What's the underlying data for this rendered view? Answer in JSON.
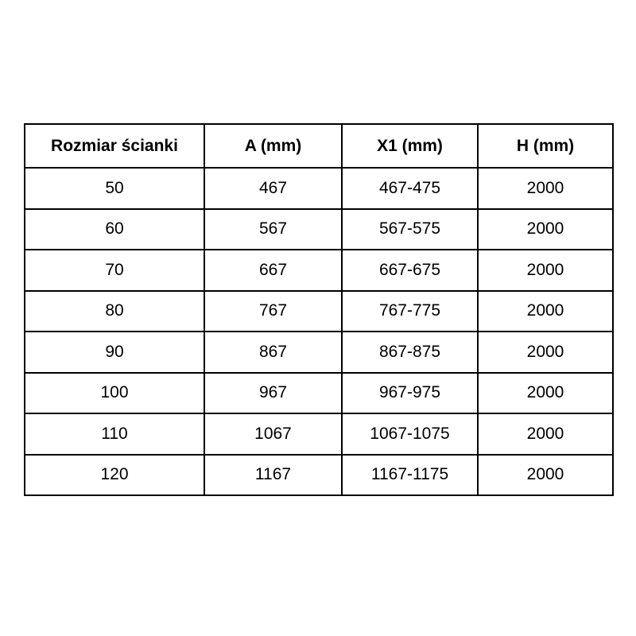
{
  "table": {
    "headers": [
      "Rozmiar ścianki",
      "A (mm)",
      "X1 (mm)",
      "H (mm)"
    ],
    "rows": [
      [
        "50",
        "467",
        "467-475",
        "2000"
      ],
      [
        "60",
        "567",
        "567-575",
        "2000"
      ],
      [
        "70",
        "667",
        "667-675",
        "2000"
      ],
      [
        "80",
        "767",
        "767-775",
        "2000"
      ],
      [
        "90",
        "867",
        "867-875",
        "2000"
      ],
      [
        "100",
        "967",
        "967-975",
        "2000"
      ],
      [
        "110",
        "1067",
        "1067-1075",
        "2000"
      ],
      [
        "120",
        "1167",
        "1167-1175",
        "2000"
      ]
    ]
  },
  "colors": {
    "border": "#000000",
    "text": "#000000",
    "background": "#ffffff"
  }
}
